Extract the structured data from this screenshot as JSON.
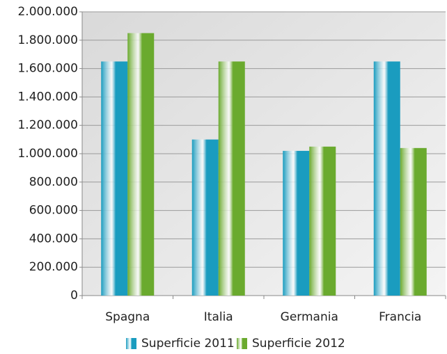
{
  "chart_data": {
    "type": "bar",
    "categories": [
      "Spagna",
      "Italia",
      "Germania",
      "Francia"
    ],
    "series": [
      {
        "name": "Superficie 2011",
        "color": "#1a9cbf",
        "values": [
          1650000,
          1100000,
          1020000,
          1650000
        ]
      },
      {
        "name": "Superficie 2012",
        "color": "#6aaa2e",
        "values": [
          1850000,
          1650000,
          1050000,
          1040000
        ]
      }
    ],
    "ylim": [
      0,
      2000000
    ],
    "yticks": [
      {
        "value": 0,
        "label": "0"
      },
      {
        "value": 200000,
        "label": "200.000"
      },
      {
        "value": 400000,
        "label": "400.000"
      },
      {
        "value": 600000,
        "label": "600.000"
      },
      {
        "value": 800000,
        "label": "800.000"
      },
      {
        "value": 1000000,
        "label": "1.000.000"
      },
      {
        "value": 1200000,
        "label": "1.200.000"
      },
      {
        "value": 1400000,
        "label": "1.400.000"
      },
      {
        "value": 1600000,
        "label": "1.600.000"
      },
      {
        "value": 1800000,
        "label": "1.800.000"
      },
      {
        "value": 2000000,
        "label": "2.000.000"
      }
    ],
    "grid": true,
    "legend": "bottom"
  }
}
